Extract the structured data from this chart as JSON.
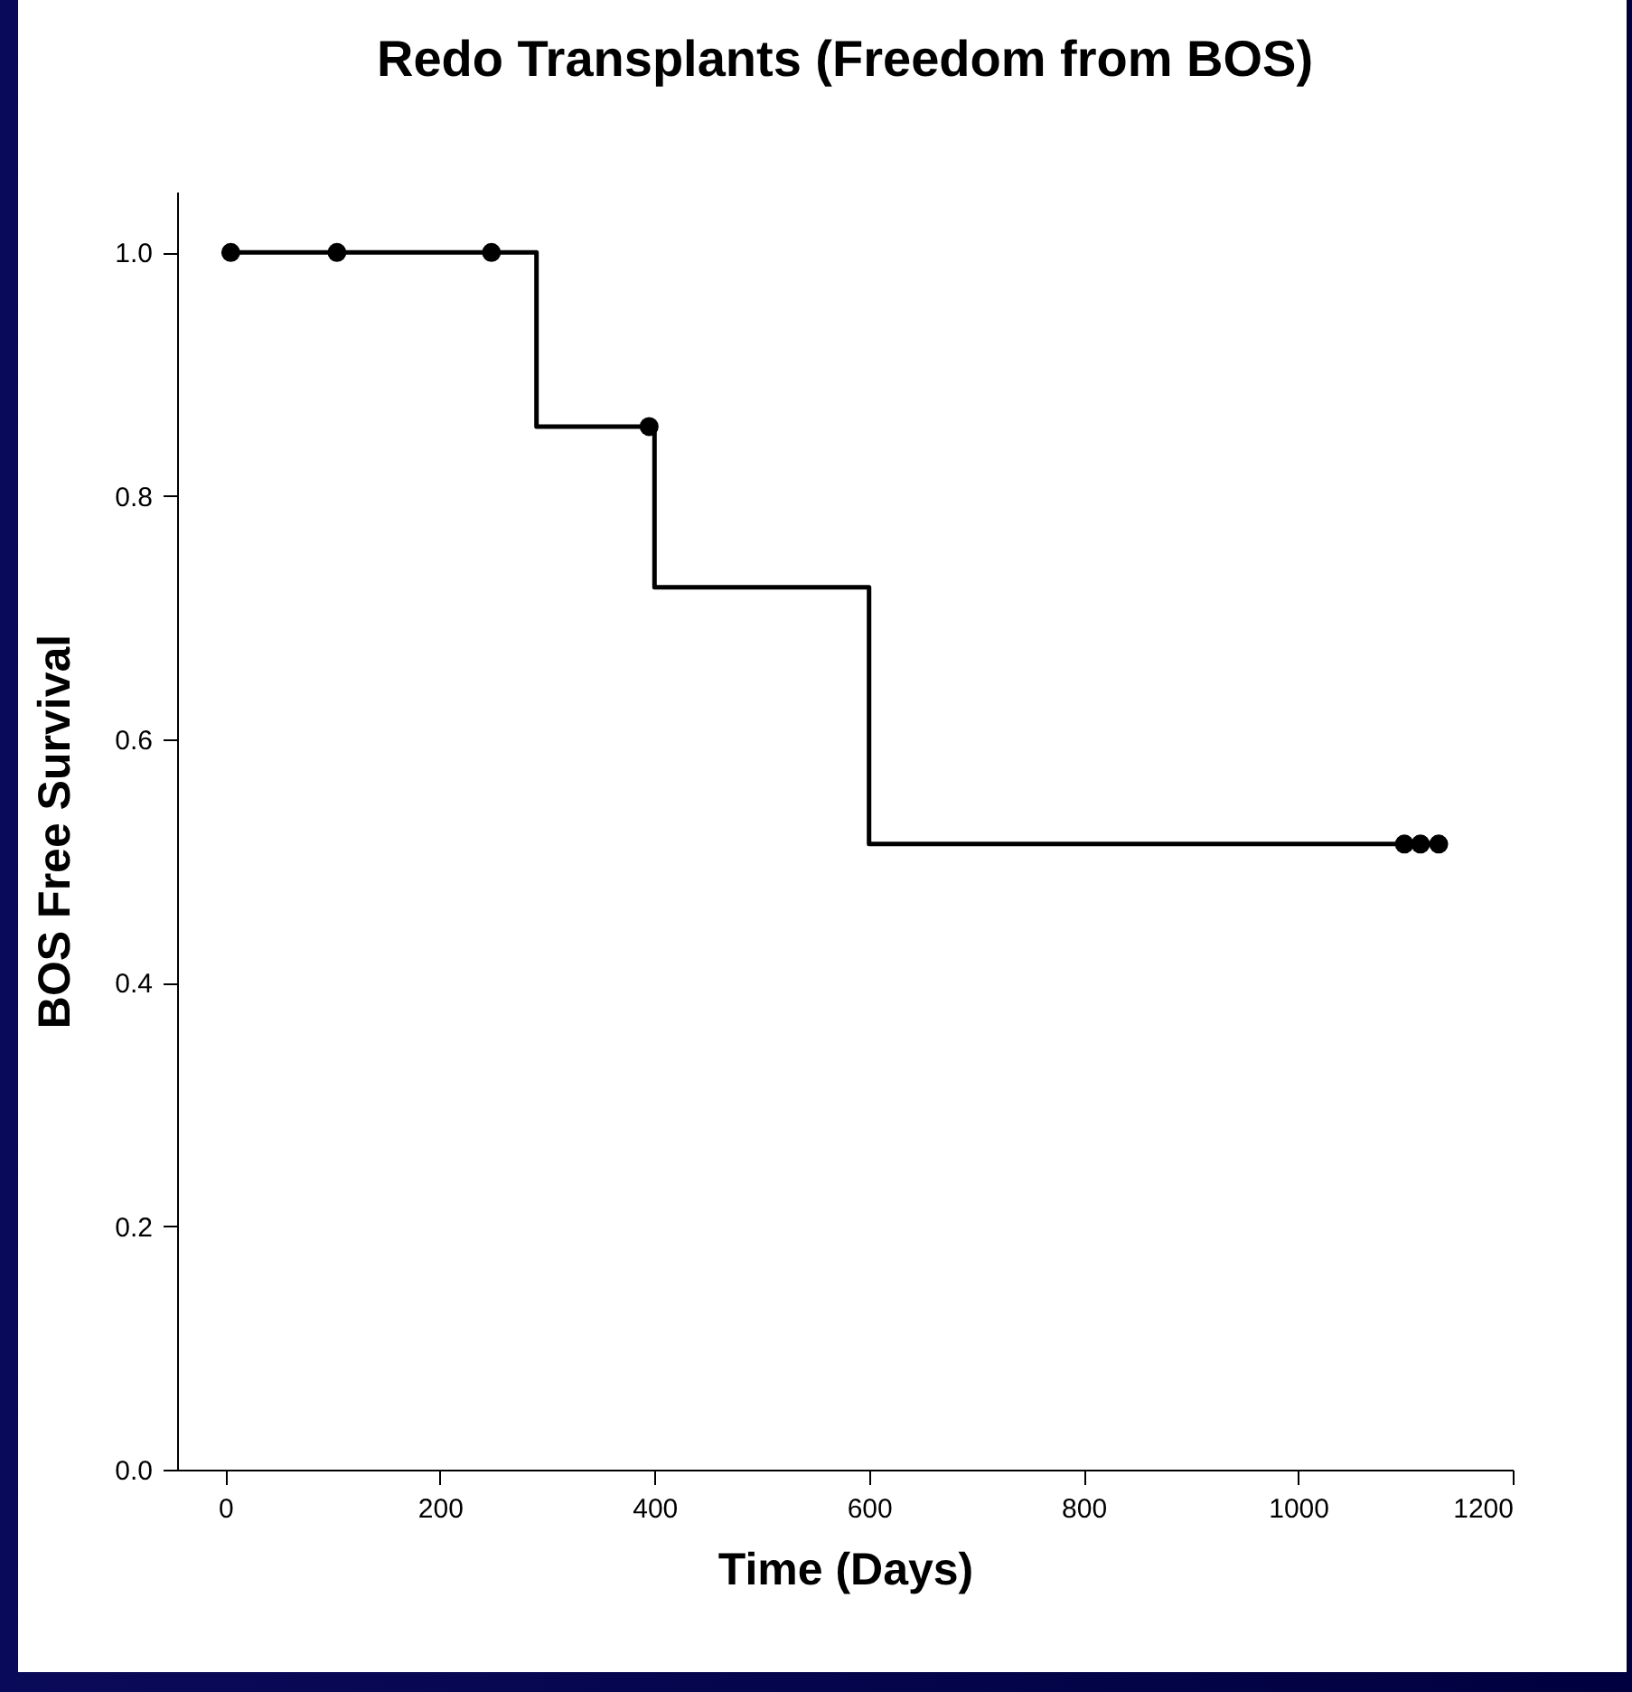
{
  "chart_data": {
    "type": "step",
    "title": "Redo Transplants (Freedom from BOS)",
    "xlabel": "Time (Days)",
    "ylabel": "BOS Free Survival",
    "xlim": [
      -45,
      1200
    ],
    "xticks": [
      0,
      200,
      400,
      600,
      800,
      {
        "value": 1000,
        "label": "1000"
      },
      {
        "value": 1200,
        "label": "1200"
      }
    ],
    "ylim": [
      0,
      1.05
    ],
    "yticks": [
      {
        "value": 0,
        "label": "0.0"
      },
      0.2,
      0.4,
      0.6,
      0.8,
      {
        "value": 1,
        "label": "1.0"
      }
    ],
    "grid": false,
    "line_style": "solid",
    "series": [
      {
        "color": "#000000",
        "marker": "none",
        "x": [
          0,
          290,
          400,
          600,
          1131
        ],
        "values": [
          1.0,
          0.857,
          0.725,
          0.514,
          0.514
        ]
      },
      {
        "type": "scatter",
        "color": "#000000",
        "marker": "circle",
        "x": [
          5,
          104,
          248,
          395,
          1099,
          1114,
          1131
        ],
        "values": [
          1.0,
          1.0,
          1.0,
          0.857,
          0.514,
          0.514,
          0.514
        ]
      }
    ]
  }
}
